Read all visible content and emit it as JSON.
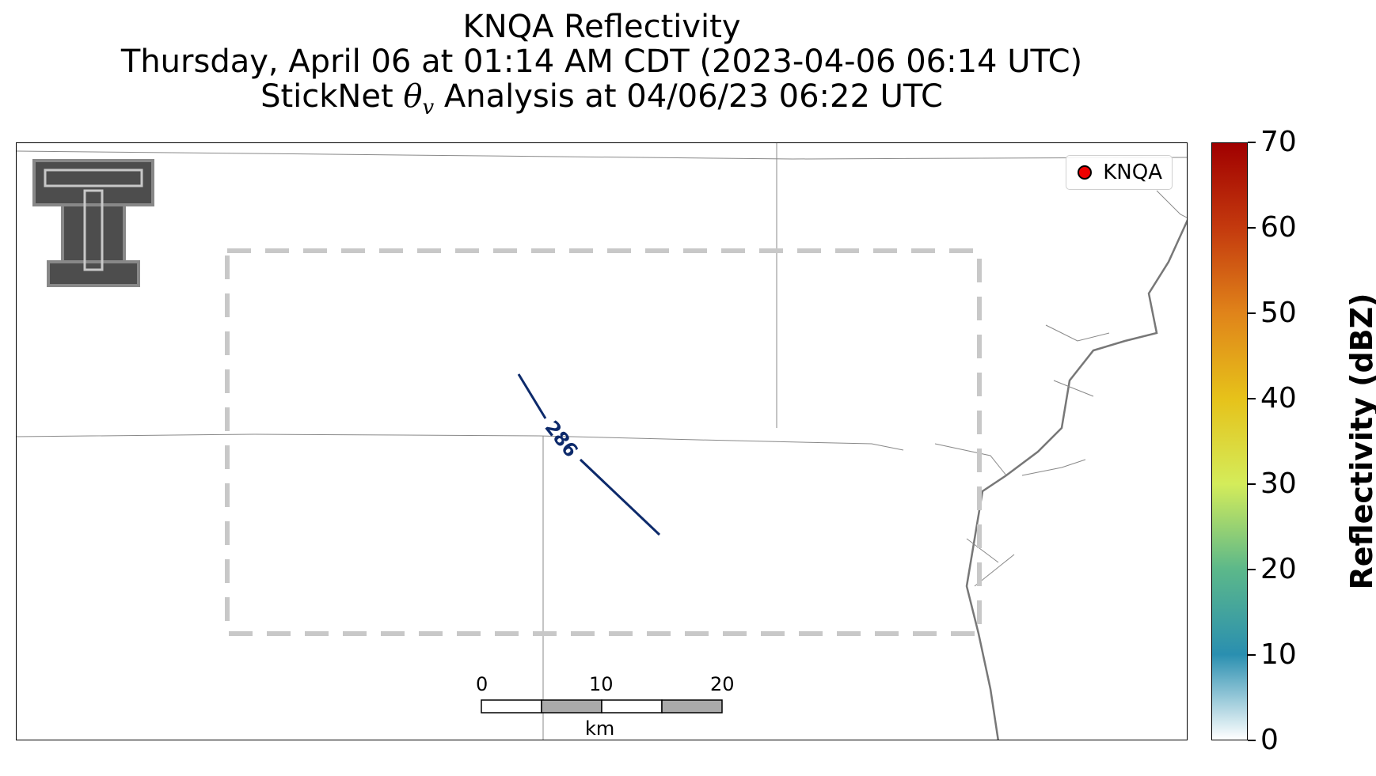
{
  "title": {
    "line1": "KNQA Reflectivity",
    "line2": "Thursday, April 06 at 01:14 AM CDT (2023-04-06 06:14 UTC)",
    "line3_prefix": "StickNet ",
    "line3_symbol": "θ",
    "line3_subscript": "v",
    "line3_suffix": " Analysis at 04/06/23 06:22 UTC"
  },
  "legend": {
    "label": "KNQA",
    "marker_color": "#ee0000"
  },
  "contour": {
    "label": "286",
    "color": "#0d2a6b"
  },
  "scalebar": {
    "labels": [
      "0",
      "10",
      "20"
    ],
    "unit": "km"
  },
  "colorbar": {
    "title": "Reflectivity (dBZ)",
    "ticks": [
      "70",
      "60",
      "50",
      "40",
      "30",
      "20",
      "10",
      "0"
    ],
    "min": 0,
    "max": 70,
    "colors": [
      "#ffffff",
      "#2a8fb0",
      "#5cb88a",
      "#d4ec5a",
      "#e6c21a",
      "#e0841a",
      "#c43a0e",
      "#a00000"
    ]
  },
  "logo": {
    "name": "Texas Tech Double T"
  },
  "analysis_box": {
    "style": "dashed",
    "color": "#cccccc"
  }
}
